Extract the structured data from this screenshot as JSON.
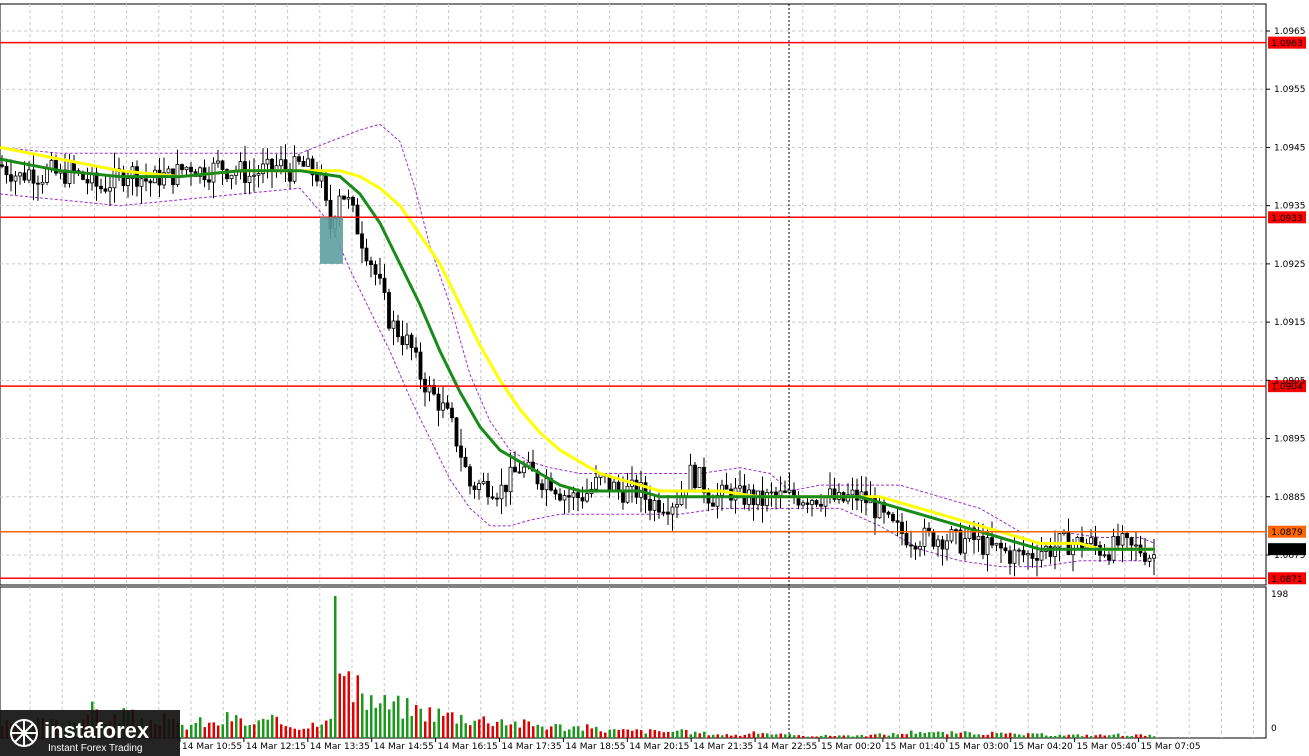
{
  "chart_data": {
    "type": "candlestick",
    "price_axis": {
      "ticks": [
        "1.0965",
        "1.0955",
        "1.0945",
        "1.0935",
        "1.0925",
        "1.0915",
        "1.0905",
        "1.0895",
        "1.0885",
        "1.0875"
      ],
      "range": [
        1.0869,
        1.0967
      ]
    },
    "levels": [
      {
        "label": "1.0963",
        "value": 1.0963,
        "color": "#ff0000"
      },
      {
        "label": "1.0933",
        "value": 1.0933,
        "color": "#ff0000"
      },
      {
        "label": "1.0904",
        "value": 1.0904,
        "color": "#ff0000"
      },
      {
        "label": "1.0879",
        "value": 1.0879,
        "color": "#ff6600"
      },
      {
        "label": "1.0871",
        "value": 1.0871,
        "color": "#ff0000"
      }
    ],
    "current_price": {
      "label": "1.0876",
      "value": 1.0876
    },
    "time_labels": [
      "14 Mar 10:55",
      "14 Mar 12:15",
      "14 Mar 13:35",
      "14 Mar 14:55",
      "14 Mar 16:15",
      "14 Mar 17:35",
      "14 Mar 18:55",
      "14 Mar 20:15",
      "14 Mar 21:35",
      "14 Mar 22:55",
      "15 Mar 00:20",
      "15 Mar 01:40",
      "15 Mar 03:00",
      "15 Mar 04:20",
      "15 Mar 05:40",
      "15 Mar 07:05"
    ],
    "price_path": [
      [
        0,
        1.0942
      ],
      [
        10,
        1.0941
      ],
      [
        20,
        1.094
      ],
      [
        30,
        1.0941
      ],
      [
        40,
        1.094
      ],
      [
        50,
        1.0941
      ],
      [
        60,
        1.094
      ],
      [
        70,
        1.0941
      ],
      [
        80,
        1.094
      ],
      [
        90,
        1.0939
      ],
      [
        100,
        1.0938
      ],
      [
        110,
        1.0939
      ],
      [
        120,
        1.094
      ],
      [
        130,
        1.0941
      ],
      [
        140,
        1.094
      ],
      [
        150,
        1.0939
      ],
      [
        160,
        1.094
      ],
      [
        170,
        1.094
      ],
      [
        180,
        1.0941
      ],
      [
        190,
        1.0942
      ],
      [
        200,
        1.0941
      ],
      [
        210,
        1.0941
      ],
      [
        220,
        1.0942
      ],
      [
        230,
        1.0941
      ],
      [
        240,
        1.0941
      ],
      [
        250,
        1.094
      ],
      [
        260,
        1.0941
      ],
      [
        270,
        1.0941
      ],
      [
        280,
        1.0942
      ],
      [
        290,
        1.0941
      ],
      [
        300,
        1.0942
      ],
      [
        310,
        1.0941
      ],
      [
        320,
        1.094
      ],
      [
        330,
        1.0931
      ],
      [
        340,
        1.0938
      ],
      [
        350,
        1.0935
      ],
      [
        360,
        1.093
      ],
      [
        370,
        1.0926
      ],
      [
        380,
        1.0921
      ],
      [
        390,
        1.0915
      ],
      [
        400,
        1.0913
      ],
      [
        410,
        1.0911
      ],
      [
        420,
        1.0906
      ],
      [
        430,
        1.0903
      ],
      [
        440,
        1.0901
      ],
      [
        450,
        1.0898
      ],
      [
        460,
        1.0893
      ],
      [
        470,
        1.0887
      ],
      [
        480,
        1.0887
      ],
      [
        490,
        1.0887
      ],
      [
        500,
        1.0886
      ],
      [
        510,
        1.0888
      ],
      [
        520,
        1.089
      ],
      [
        530,
        1.0889
      ],
      [
        540,
        1.0888
      ],
      [
        550,
        1.0888
      ],
      [
        560,
        1.0886
      ],
      [
        570,
        1.0885
      ],
      [
        580,
        1.0885
      ],
      [
        590,
        1.0886
      ],
      [
        600,
        1.0888
      ],
      [
        610,
        1.0887
      ],
      [
        620,
        1.0886
      ],
      [
        630,
        1.0886
      ],
      [
        640,
        1.0886
      ],
      [
        650,
        1.0884
      ],
      [
        660,
        1.0884
      ],
      [
        670,
        1.0884
      ],
      [
        680,
        1.0885
      ],
      [
        690,
        1.0889
      ],
      [
        700,
        1.0888
      ],
      [
        710,
        1.0885
      ],
      [
        720,
        1.0885
      ],
      [
        730,
        1.0886
      ],
      [
        740,
        1.0885
      ],
      [
        750,
        1.0885
      ],
      [
        760,
        1.0884
      ],
      [
        770,
        1.0885
      ],
      [
        780,
        1.0885
      ],
      [
        790,
        1.0885
      ],
      [
        800,
        1.0885
      ],
      [
        810,
        1.0885
      ],
      [
        820,
        1.0885
      ],
      [
        830,
        1.0885
      ],
      [
        840,
        1.0884
      ],
      [
        850,
        1.0885
      ],
      [
        860,
        1.0885
      ],
      [
        870,
        1.0884
      ],
      [
        880,
        1.0882
      ],
      [
        890,
        1.088
      ],
      [
        900,
        1.0879
      ],
      [
        910,
        1.0878
      ],
      [
        920,
        1.0878
      ],
      [
        930,
        1.0878
      ],
      [
        940,
        1.0878
      ],
      [
        950,
        1.0878
      ],
      [
        960,
        1.0877
      ],
      [
        970,
        1.0878
      ],
      [
        980,
        1.0877
      ],
      [
        990,
        1.0876
      ],
      [
        1000,
        1.0876
      ],
      [
        1010,
        1.0875
      ],
      [
        1020,
        1.0875
      ],
      [
        1030,
        1.0875
      ],
      [
        1040,
        1.0876
      ],
      [
        1050,
        1.0876
      ],
      [
        1060,
        1.0877
      ],
      [
        1070,
        1.0877
      ],
      [
        1080,
        1.0877
      ],
      [
        1090,
        1.0877
      ],
      [
        1100,
        1.0876
      ],
      [
        1110,
        1.0876
      ],
      [
        1120,
        1.0877
      ],
      [
        1130,
        1.0876
      ],
      [
        1140,
        1.0876
      ],
      [
        1150,
        1.0875
      ]
    ],
    "ma_green_path": [
      [
        0,
        1.0943
      ],
      [
        60,
        1.0941
      ],
      [
        120,
        1.094
      ],
      [
        180,
        1.094
      ],
      [
        240,
        1.0941
      ],
      [
        300,
        1.0941
      ],
      [
        340,
        1.094
      ],
      [
        360,
        1.0937
      ],
      [
        380,
        1.0932
      ],
      [
        400,
        1.0925
      ],
      [
        420,
        1.0918
      ],
      [
        440,
        1.091
      ],
      [
        460,
        1.0903
      ],
      [
        480,
        1.0897
      ],
      [
        500,
        1.0893
      ],
      [
        520,
        1.0891
      ],
      [
        540,
        1.0889
      ],
      [
        560,
        1.0887
      ],
      [
        580,
        1.0886
      ],
      [
        600,
        1.0886
      ],
      [
        620,
        1.0886
      ],
      [
        640,
        1.0886
      ],
      [
        660,
        1.0885
      ],
      [
        680,
        1.0885
      ],
      [
        700,
        1.0885
      ],
      [
        740,
        1.0885
      ],
      [
        780,
        1.0885
      ],
      [
        820,
        1.0885
      ],
      [
        860,
        1.0885
      ],
      [
        880,
        1.0884
      ],
      [
        900,
        1.0883
      ],
      [
        920,
        1.0882
      ],
      [
        940,
        1.0881
      ],
      [
        960,
        1.088
      ],
      [
        980,
        1.0879
      ],
      [
        1000,
        1.0878
      ],
      [
        1020,
        1.0877
      ],
      [
        1040,
        1.0876
      ],
      [
        1060,
        1.0876
      ],
      [
        1080,
        1.0876
      ],
      [
        1100,
        1.0876
      ],
      [
        1120,
        1.0876
      ],
      [
        1140,
        1.0876
      ],
      [
        1155,
        1.0876
      ]
    ],
    "ma_yellow_path": [
      [
        0,
        1.0945
      ],
      [
        60,
        1.0943
      ],
      [
        120,
        1.0941
      ],
      [
        180,
        1.094
      ],
      [
        240,
        1.0941
      ],
      [
        300,
        1.0941
      ],
      [
        340,
        1.0941
      ],
      [
        360,
        1.094
      ],
      [
        380,
        1.0938
      ],
      [
        400,
        1.0935
      ],
      [
        420,
        1.093
      ],
      [
        440,
        1.0925
      ],
      [
        460,
        1.0918
      ],
      [
        480,
        1.0911
      ],
      [
        500,
        1.0905
      ],
      [
        520,
        1.09
      ],
      [
        540,
        1.0896
      ],
      [
        560,
        1.0893
      ],
      [
        580,
        1.0891
      ],
      [
        600,
        1.0889
      ],
      [
        620,
        1.0888
      ],
      [
        640,
        1.0887
      ],
      [
        660,
        1.0886
      ],
      [
        680,
        1.0886
      ],
      [
        720,
        1.0886
      ],
      [
        760,
        1.0885
      ],
      [
        820,
        1.0885
      ],
      [
        860,
        1.0885
      ],
      [
        880,
        1.0885
      ],
      [
        900,
        1.0884
      ],
      [
        920,
        1.0883
      ],
      [
        940,
        1.0882
      ],
      [
        960,
        1.0881
      ],
      [
        980,
        1.088
      ],
      [
        1000,
        1.0879
      ],
      [
        1020,
        1.0878
      ],
      [
        1040,
        1.0877
      ],
      [
        1060,
        1.0877
      ],
      [
        1080,
        1.0877
      ],
      [
        1100,
        1.0876
      ],
      [
        1120,
        1.0876
      ],
      [
        1140,
        1.0876
      ],
      [
        1155,
        1.0876
      ]
    ],
    "bollinger_upper_path": [
      [
        0,
        1.0945
      ],
      [
        60,
        1.0944
      ],
      [
        120,
        1.0944
      ],
      [
        180,
        1.0944
      ],
      [
        240,
        1.0944
      ],
      [
        300,
        1.0944
      ],
      [
        330,
        1.0946
      ],
      [
        360,
        1.0948
      ],
      [
        380,
        1.0949
      ],
      [
        400,
        1.0946
      ],
      [
        415,
        1.0938
      ],
      [
        430,
        1.0928
      ],
      [
        450,
        1.0918
      ],
      [
        470,
        1.0906
      ],
      [
        490,
        1.0898
      ],
      [
        510,
        1.0893
      ],
      [
        530,
        1.0891
      ],
      [
        550,
        1.089
      ],
      [
        580,
        1.0889
      ],
      [
        620,
        1.0889
      ],
      [
        660,
        1.0889
      ],
      [
        700,
        1.0889
      ],
      [
        740,
        1.089
      ],
      [
        770,
        1.0889
      ],
      [
        790,
        1.0886
      ],
      [
        820,
        1.0887
      ],
      [
        860,
        1.0887
      ],
      [
        900,
        1.0887
      ],
      [
        940,
        1.0885
      ],
      [
        980,
        1.0883
      ],
      [
        1020,
        1.0879
      ],
      [
        1060,
        1.0879
      ],
      [
        1100,
        1.0878
      ],
      [
        1140,
        1.0878
      ],
      [
        1155,
        1.0877
      ]
    ],
    "bollinger_lower_path": [
      [
        0,
        1.0937
      ],
      [
        60,
        1.0936
      ],
      [
        120,
        1.0935
      ],
      [
        180,
        1.0936
      ],
      [
        240,
        1.0937
      ],
      [
        300,
        1.0938
      ],
      [
        330,
        1.0932
      ],
      [
        350,
        1.0924
      ],
      [
        370,
        1.0917
      ],
      [
        390,
        1.091
      ],
      [
        410,
        1.0902
      ],
      [
        430,
        1.0895
      ],
      [
        450,
        1.0888
      ],
      [
        470,
        1.0883
      ],
      [
        490,
        1.088
      ],
      [
        510,
        1.088
      ],
      [
        530,
        1.0881
      ],
      [
        560,
        1.0882
      ],
      [
        600,
        1.0882
      ],
      [
        640,
        1.0882
      ],
      [
        680,
        1.0882
      ],
      [
        720,
        1.0883
      ],
      [
        760,
        1.0883
      ],
      [
        800,
        1.0883
      ],
      [
        840,
        1.0883
      ],
      [
        880,
        1.088
      ],
      [
        920,
        1.0876
      ],
      [
        960,
        1.0874
      ],
      [
        1000,
        1.0873
      ],
      [
        1040,
        1.0873
      ],
      [
        1080,
        1.0874
      ],
      [
        1120,
        1.0874
      ],
      [
        1155,
        1.0874
      ]
    ],
    "signal_box": {
      "x_from": 320,
      "x_to": 343,
      "top": 1.0933,
      "bottom": 1.0925,
      "color": "#5f9ea0"
    },
    "volume_axis": {
      "max_label": "198",
      "zero_label": "0"
    },
    "volume_peak": {
      "x": 336,
      "value": 198
    },
    "volume_profile": [
      [
        0,
        20
      ],
      [
        20,
        15
      ],
      [
        40,
        22
      ],
      [
        60,
        20
      ],
      [
        80,
        28
      ],
      [
        95,
        40
      ],
      [
        110,
        22
      ],
      [
        125,
        38
      ],
      [
        140,
        20
      ],
      [
        160,
        28
      ],
      [
        180,
        16
      ],
      [
        200,
        22
      ],
      [
        215,
        18
      ],
      [
        230,
        30
      ],
      [
        250,
        18
      ],
      [
        270,
        24
      ],
      [
        290,
        18
      ],
      [
        310,
        16
      ],
      [
        320,
        30
      ],
      [
        330,
        30
      ],
      [
        336,
        198
      ],
      [
        340,
        90
      ],
      [
        350,
        70
      ],
      [
        360,
        60
      ],
      [
        380,
        48
      ],
      [
        400,
        44
      ],
      [
        420,
        38
      ],
      [
        440,
        34
      ],
      [
        460,
        30
      ],
      [
        480,
        26
      ],
      [
        500,
        26
      ],
      [
        520,
        20
      ],
      [
        540,
        18
      ],
      [
        560,
        16
      ],
      [
        580,
        15
      ],
      [
        600,
        12
      ],
      [
        620,
        10
      ],
      [
        640,
        10
      ],
      [
        660,
        9
      ],
      [
        680,
        9
      ],
      [
        700,
        7
      ],
      [
        720,
        5
      ],
      [
        740,
        4
      ],
      [
        760,
        8
      ],
      [
        780,
        5
      ],
      [
        800,
        3
      ],
      [
        820,
        3
      ],
      [
        840,
        4
      ],
      [
        860,
        3
      ],
      [
        880,
        5
      ],
      [
        900,
        6
      ],
      [
        920,
        10
      ],
      [
        940,
        7
      ],
      [
        960,
        7
      ],
      [
        980,
        7
      ],
      [
        1000,
        6
      ],
      [
        1020,
        5
      ],
      [
        1040,
        5
      ],
      [
        1060,
        4
      ],
      [
        1080,
        4
      ],
      [
        1100,
        4
      ],
      [
        1120,
        5
      ],
      [
        1140,
        4
      ],
      [
        1155,
        3
      ]
    ],
    "crosshair_x": 789,
    "grid": true
  },
  "branding": {
    "logo_name": "instaforex",
    "tagline": "Instant Forex Trading"
  }
}
